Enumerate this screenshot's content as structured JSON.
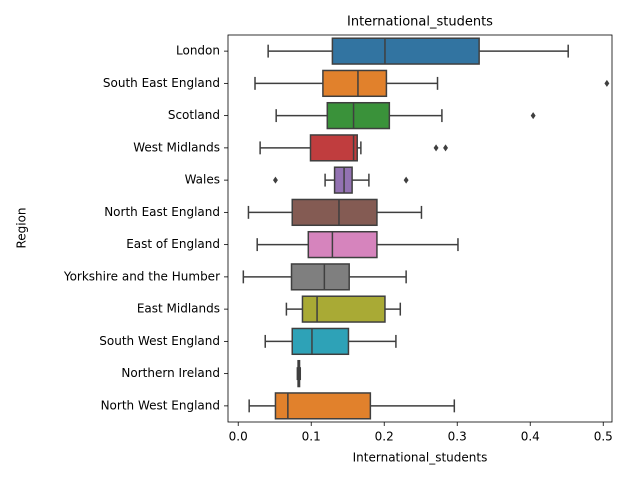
{
  "chart_data": {
    "type": "boxplot",
    "title": "International_students",
    "xlabel": "International_students",
    "ylabel": "Region",
    "categories": [
      "London",
      "South East England",
      "Scotland",
      "West Midlands",
      "Wales",
      "North East England",
      "East of England",
      "Yorkshire and the Humber",
      "East Midlands",
      "South West England",
      "Northern Ireland",
      "North West England"
    ],
    "boxes": [
      {
        "whislo": 0.041,
        "q1": 0.129,
        "med": 0.201,
        "q3": 0.33,
        "whishi": 0.452,
        "fliers": [],
        "color": "#3274a1"
      },
      {
        "whislo": 0.023,
        "q1": 0.116,
        "med": 0.164,
        "q3": 0.203,
        "whishi": 0.273,
        "fliers": [
          0.505
        ],
        "color": "#e1812c"
      },
      {
        "whislo": 0.052,
        "q1": 0.122,
        "med": 0.158,
        "q3": 0.207,
        "whishi": 0.279,
        "fliers": [
          0.404
        ],
        "color": "#3a923a"
      },
      {
        "whislo": 0.03,
        "q1": 0.099,
        "med": 0.158,
        "q3": 0.163,
        "whishi": 0.168,
        "fliers": [
          0.271,
          0.284
        ],
        "color": "#c03d3e"
      },
      {
        "whislo": 0.119,
        "q1": 0.132,
        "med": 0.145,
        "q3": 0.156,
        "whishi": 0.179,
        "fliers": [
          0.051,
          0.23
        ],
        "color": "#9372b2"
      },
      {
        "whislo": 0.014,
        "q1": 0.074,
        "med": 0.138,
        "q3": 0.19,
        "whishi": 0.251,
        "fliers": [],
        "color": "#845b53"
      },
      {
        "whislo": 0.026,
        "q1": 0.096,
        "med": 0.129,
        "q3": 0.19,
        "whishi": 0.301,
        "fliers": [],
        "color": "#d684bd"
      },
      {
        "whislo": 0.007,
        "q1": 0.073,
        "med": 0.118,
        "q3": 0.152,
        "whishi": 0.23,
        "fliers": [],
        "color": "#7f7f7f"
      },
      {
        "whislo": 0.066,
        "q1": 0.088,
        "med": 0.108,
        "q3": 0.201,
        "whishi": 0.222,
        "fliers": [],
        "color": "#a9aa35"
      },
      {
        "whislo": 0.037,
        "q1": 0.074,
        "med": 0.101,
        "q3": 0.151,
        "whishi": 0.216,
        "fliers": [],
        "color": "#2ea2b7"
      },
      {
        "whislo": 0.081,
        "q1": 0.082,
        "med": 0.083,
        "q3": 0.084,
        "whishi": 0.085,
        "fliers": [],
        "color": "#3274a1"
      },
      {
        "whislo": 0.015,
        "q1": 0.051,
        "med": 0.068,
        "q3": 0.181,
        "whishi": 0.296,
        "fliers": [],
        "color": "#e1812c"
      }
    ],
    "xlim": [
      -0.014,
      0.512
    ],
    "xticks": [
      {
        "value": 0,
        "label": "0.0"
      },
      0.1,
      0.2,
      0.3,
      0.4,
      0.5
    ]
  }
}
